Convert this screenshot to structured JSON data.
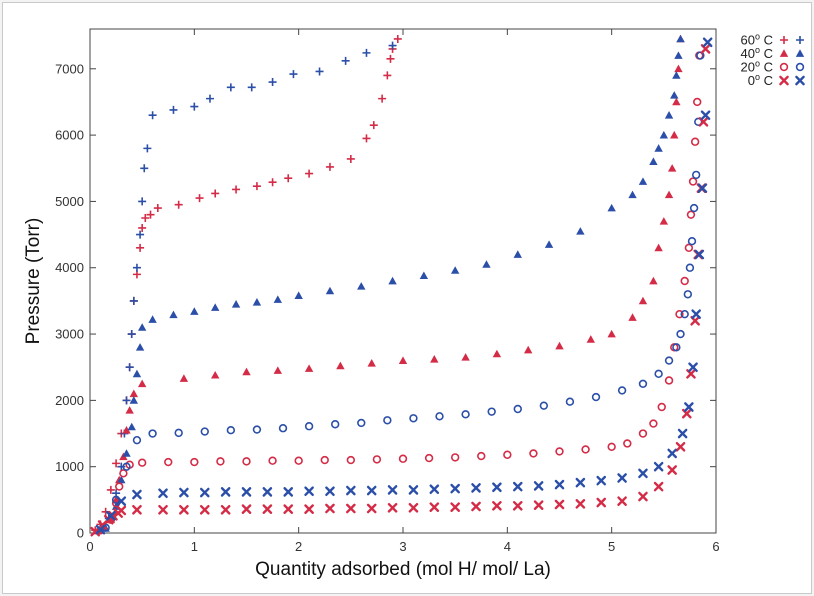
{
  "chart_data": {
    "type": "scatter",
    "title": "",
    "xlabel": "Quantity adsorbed (mol H/ mol/ La)",
    "ylabel": "Pressure (Torr)",
    "xlim": [
      0,
      6
    ],
    "ylim": [
      0,
      7600
    ],
    "x_ticks": [
      "0",
      "1",
      "2",
      "3",
      "4",
      "5",
      "6"
    ],
    "y_ticks": [
      "0",
      "1000",
      "2000",
      "3000",
      "4000",
      "5000",
      "6000",
      "7000"
    ],
    "grid": false,
    "legend_position": "top-right",
    "legend": [
      {
        "label": "60° C",
        "sup_main": "60",
        "sup": "o",
        "sup_tail": " C"
      },
      {
        "label": "40° C",
        "sup_main": "40",
        "sup": "o",
        "sup_tail": " C"
      },
      {
        "label": "20° C",
        "sup_main": "20",
        "sup": "o",
        "sup_tail": " C"
      },
      {
        "label": "0° C",
        "sup_main": "0",
        "sup": "o",
        "sup_tail": " C"
      }
    ],
    "colors": {
      "absorption": "#d42c47",
      "desorption": "#2b4fa8"
    },
    "series": [
      {
        "name": "60° C",
        "marker": "plus",
        "branch": "absorption",
        "x": [
          0.05,
          0.1,
          0.15,
          0.2,
          0.25,
          0.3,
          0.35,
          0.38,
          0.4,
          0.42,
          0.45,
          0.48,
          0.5,
          0.53,
          0.58,
          0.65,
          0.85,
          1.05,
          1.2,
          1.4,
          1.6,
          1.75,
          1.9,
          2.1,
          2.3,
          2.5,
          2.65,
          2.72,
          2.8,
          2.85,
          2.88,
          2.9,
          2.95
        ],
        "y": [
          40,
          130,
          320,
          650,
          1050,
          1500,
          2000,
          2500,
          3000,
          3500,
          3900,
          4300,
          4600,
          4750,
          4800,
          4900,
          4950,
          5050,
          5120,
          5180,
          5230,
          5290,
          5350,
          5420,
          5520,
          5640,
          5950,
          6150,
          6550,
          6900,
          7150,
          7300,
          7450
        ]
      },
      {
        "name": "60° C",
        "marker": "plus",
        "branch": "desorption",
        "x": [
          0.1,
          0.18,
          0.25,
          0.3,
          0.33,
          0.35,
          0.38,
          0.4,
          0.42,
          0.45,
          0.48,
          0.5,
          0.52,
          0.55,
          0.6,
          0.8,
          1.0,
          1.15,
          1.35,
          1.55,
          1.75,
          1.95,
          2.2,
          2.45,
          2.65,
          2.9
        ],
        "y": [
          60,
          220,
          600,
          1000,
          1500,
          2000,
          2500,
          3000,
          3500,
          4000,
          4500,
          5000,
          5500,
          5800,
          6300,
          6380,
          6430,
          6550,
          6720,
          6720,
          6800,
          6920,
          6960,
          7120,
          7240,
          7350
        ]
      },
      {
        "name": "40° C",
        "marker": "triangle",
        "branch": "absorption",
        "x": [
          0.1,
          0.2,
          0.25,
          0.28,
          0.32,
          0.35,
          0.38,
          0.42,
          0.5,
          0.9,
          1.2,
          1.5,
          1.8,
          2.1,
          2.4,
          2.7,
          3.0,
          3.3,
          3.6,
          3.9,
          4.2,
          4.5,
          4.8,
          5.0,
          5.2,
          5.3,
          5.4,
          5.45,
          5.5,
          5.55,
          5.58,
          5.6,
          5.62,
          5.64,
          5.66
        ],
        "y": [
          40,
          200,
          500,
          800,
          1150,
          1550,
          1850,
          2100,
          2250,
          2330,
          2380,
          2430,
          2450,
          2480,
          2520,
          2560,
          2600,
          2620,
          2650,
          2700,
          2760,
          2820,
          2920,
          3000,
          3250,
          3500,
          3800,
          4300,
          4700,
          5100,
          5500,
          6000,
          6500,
          7000,
          7450
        ]
      },
      {
        "name": "40° C",
        "marker": "triangle",
        "branch": "desorption",
        "x": [
          0.15,
          0.25,
          0.3,
          0.35,
          0.4,
          0.42,
          0.45,
          0.48,
          0.5,
          0.6,
          0.8,
          1.0,
          1.2,
          1.4,
          1.6,
          1.8,
          2.0,
          2.3,
          2.6,
          2.9,
          3.2,
          3.5,
          3.8,
          4.1,
          4.4,
          4.7,
          5.0,
          5.2,
          5.3,
          5.4,
          5.45,
          5.5,
          5.55,
          5.6,
          5.62,
          5.64,
          5.66
        ],
        "y": [
          70,
          400,
          800,
          1200,
          1600,
          2000,
          2400,
          2800,
          3100,
          3220,
          3290,
          3340,
          3400,
          3450,
          3480,
          3520,
          3580,
          3650,
          3720,
          3800,
          3880,
          3960,
          4050,
          4200,
          4350,
          4550,
          4900,
          5100,
          5300,
          5600,
          5800,
          6000,
          6300,
          6600,
          6900,
          7200,
          7450
        ]
      },
      {
        "name": "20° C",
        "marker": "circle",
        "branch": "absorption",
        "x": [
          0.1,
          0.2,
          0.25,
          0.28,
          0.32,
          0.38,
          0.5,
          0.75,
          1.0,
          1.25,
          1.5,
          1.75,
          2.0,
          2.25,
          2.5,
          2.75,
          3.0,
          3.25,
          3.5,
          3.75,
          4.0,
          4.25,
          4.5,
          4.75,
          5.0,
          5.15,
          5.3,
          5.4,
          5.48,
          5.55,
          5.6,
          5.65,
          5.7,
          5.74,
          5.76,
          5.78,
          5.8,
          5.82,
          5.84
        ],
        "y": [
          40,
          200,
          450,
          700,
          900,
          1030,
          1060,
          1070,
          1070,
          1080,
          1080,
          1090,
          1090,
          1100,
          1100,
          1110,
          1120,
          1130,
          1140,
          1160,
          1180,
          1200,
          1230,
          1260,
          1300,
          1350,
          1500,
          1650,
          1900,
          2300,
          2800,
          3300,
          3800,
          4300,
          4800,
          5300,
          5900,
          6500,
          7200
        ]
      },
      {
        "name": "20° C",
        "marker": "circle",
        "branch": "desorption",
        "x": [
          0.15,
          0.25,
          0.35,
          0.45,
          0.6,
          0.85,
          1.1,
          1.35,
          1.6,
          1.85,
          2.1,
          2.35,
          2.6,
          2.85,
          3.1,
          3.35,
          3.6,
          3.85,
          4.1,
          4.35,
          4.6,
          4.85,
          5.1,
          5.3,
          5.45,
          5.55,
          5.62,
          5.66,
          5.7,
          5.73,
          5.75,
          5.77,
          5.79,
          5.81,
          5.83,
          5.85
        ],
        "y": [
          80,
          500,
          1000,
          1400,
          1500,
          1510,
          1530,
          1550,
          1560,
          1580,
          1610,
          1640,
          1660,
          1700,
          1730,
          1760,
          1790,
          1830,
          1870,
          1920,
          1980,
          2050,
          2150,
          2250,
          2400,
          2600,
          2800,
          3000,
          3300,
          3600,
          4000,
          4400,
          4900,
          5400,
          6200,
          7200
        ]
      },
      {
        "name": "0° C",
        "marker": "x",
        "branch": "absorption",
        "x": [
          0.05,
          0.12,
          0.18,
          0.22,
          0.27,
          0.3,
          0.45,
          0.7,
          0.9,
          1.1,
          1.3,
          1.5,
          1.7,
          1.9,
          2.1,
          2.3,
          2.5,
          2.7,
          2.9,
          3.1,
          3.3,
          3.5,
          3.7,
          3.9,
          4.1,
          4.3,
          4.5,
          4.7,
          4.9,
          5.1,
          5.3,
          5.45,
          5.58,
          5.66,
          5.72,
          5.76,
          5.8,
          5.83,
          5.86,
          5.88,
          5.9
        ],
        "y": [
          20,
          120,
          200,
          260,
          300,
          340,
          350,
          350,
          350,
          350,
          350,
          360,
          360,
          360,
          360,
          370,
          370,
          370,
          380,
          380,
          390,
          390,
          400,
          410,
          410,
          420,
          430,
          440,
          460,
          480,
          550,
          700,
          950,
          1300,
          1800,
          2400,
          3200,
          4200,
          5200,
          6200,
          7300
        ]
      },
      {
        "name": "0° C",
        "marker": "x",
        "branch": "desorption",
        "x": [
          0.1,
          0.2,
          0.3,
          0.45,
          0.7,
          0.9,
          1.1,
          1.3,
          1.5,
          1.7,
          1.9,
          2.1,
          2.3,
          2.5,
          2.7,
          2.9,
          3.1,
          3.3,
          3.5,
          3.7,
          3.9,
          4.1,
          4.3,
          4.5,
          4.7,
          4.9,
          5.1,
          5.3,
          5.45,
          5.58,
          5.68,
          5.74,
          5.78,
          5.81,
          5.84,
          5.87,
          5.9,
          5.92
        ],
        "y": [
          50,
          260,
          480,
          580,
          600,
          610,
          610,
          620,
          620,
          620,
          620,
          630,
          630,
          640,
          640,
          650,
          650,
          660,
          670,
          680,
          690,
          700,
          710,
          730,
          760,
          790,
          830,
          900,
          1000,
          1200,
          1500,
          1900,
          2500,
          3300,
          4200,
          5200,
          6300,
          7400
        ]
      }
    ]
  }
}
